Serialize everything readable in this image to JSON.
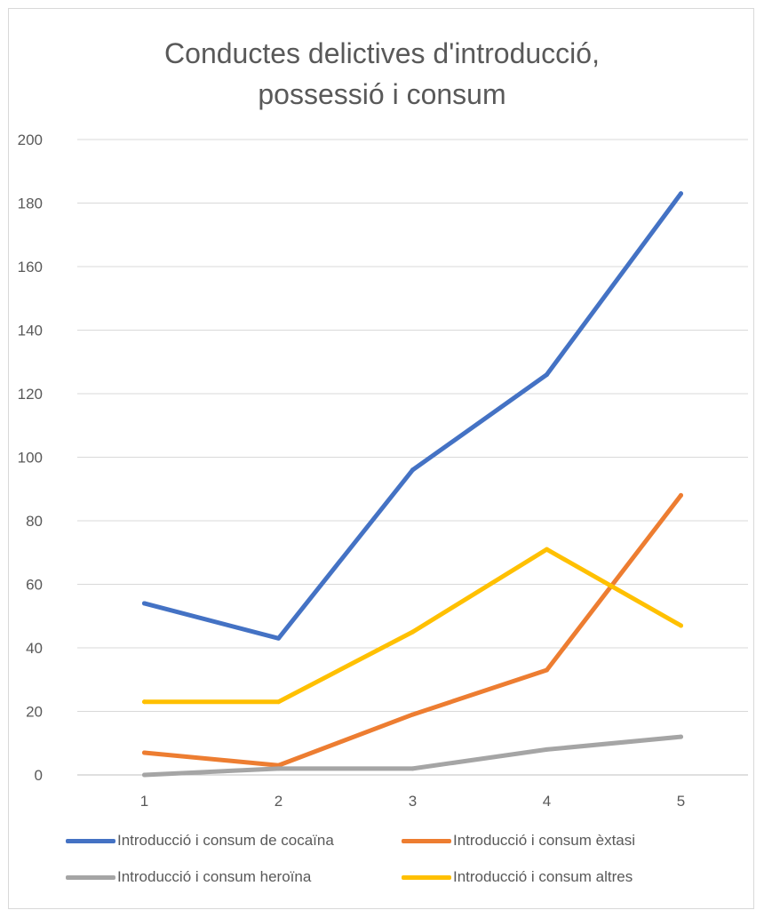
{
  "chart_data": {
    "type": "line",
    "title_lines": [
      "Conductes delictives d'introducció,",
      "possessió i consum"
    ],
    "categories": [
      "1",
      "2",
      "3",
      "4",
      "5"
    ],
    "ylim": [
      0,
      200
    ],
    "yticks": [
      0,
      20,
      40,
      60,
      80,
      100,
      120,
      140,
      160,
      180,
      200
    ],
    "grid": true,
    "legend_position": "bottom",
    "series": [
      {
        "name": "Introducció i consum de cocaïna",
        "color": "#4472c4",
        "values": [
          54,
          43,
          96,
          126,
          183
        ]
      },
      {
        "name": "Introducció i consum èxtasi",
        "color": "#ed7d31",
        "values": [
          7,
          3,
          19,
          33,
          88
        ]
      },
      {
        "name": "Introducció i consum heroïna",
        "color": "#a5a5a5",
        "values": [
          0,
          2,
          2,
          8,
          12
        ]
      },
      {
        "name": "Introducció i consum altres",
        "color": "#ffc000",
        "values": [
          23,
          23,
          45,
          71,
          47
        ]
      }
    ]
  }
}
